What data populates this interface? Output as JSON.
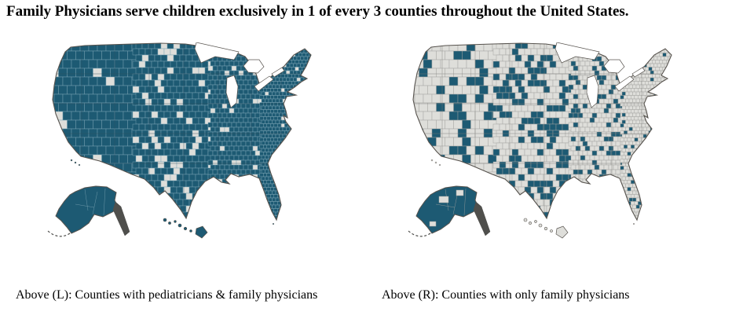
{
  "title": "Family Physicians serve children exclusively in 1 of every 3 counties throughout the United States.",
  "headline_stat": "1 of every 3 counties",
  "captions": {
    "left": "Above (L): Counties with pediatricians & family physicians",
    "right": "Above (R): Counties with only family physicians"
  },
  "colors": {
    "teal": "#1d5a73",
    "county_light": "#dededa",
    "county_border_on_teal": "#7ea6b5",
    "county_border_on_light": "#a3a39f",
    "state_line_left": "#2f4f60",
    "state_line_right": "#787874",
    "outline": "#57534e",
    "alaska_panhandle": "#4f4f4c",
    "water": "#ffffff",
    "background": "#ffffff",
    "text": "#000000"
  },
  "chart_data": [
    {
      "type": "heatmap",
      "subtype": "us-county-choropleth",
      "panel": "left",
      "caption": "Above (L): Counties with pediatricians & family physicians",
      "shaded_meaning": "County has pediatricians & family physicians",
      "shaded_color": "#1d5a73",
      "unshaded_color": "#dededa",
      "approx_share_shaded": 0.87,
      "unshaded_density_by_region": {
        "west": 0.05,
        "plains": 0.18,
        "central": 0.08,
        "east": 0.04
      },
      "alaska": "shaded",
      "hawaii": "shaded"
    },
    {
      "type": "heatmap",
      "subtype": "us-county-choropleth",
      "panel": "right",
      "caption": "Above (R): Counties with only family physicians",
      "shaded_meaning": "County has only family physicians",
      "shaded_color": "#1d5a73",
      "unshaded_color": "#dededa",
      "approx_share_shaded": 0.27,
      "shaded_density_by_region": {
        "west": 0.25,
        "plains": 0.38,
        "central": 0.22,
        "east": 0.08
      },
      "alaska": "shaded",
      "hawaii": "unshaded"
    }
  ]
}
